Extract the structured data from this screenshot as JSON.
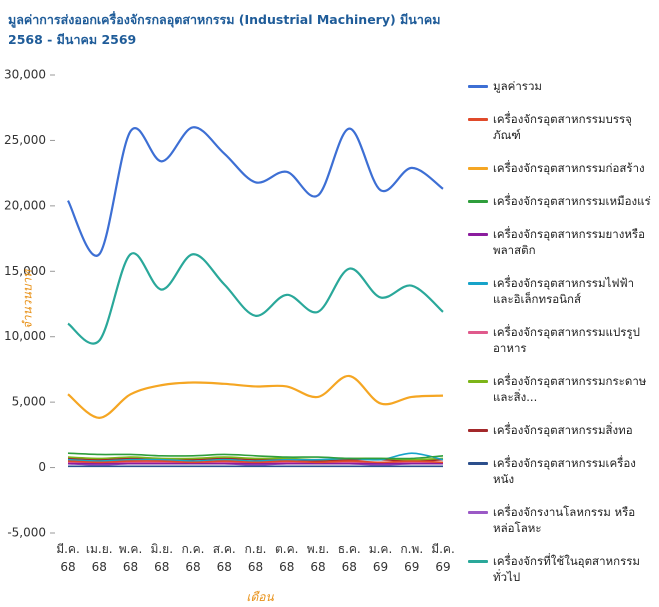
{
  "chart_data": {
    "type": "line",
    "title": "มูลค่าการส่งออกเครื่องจักรกลอุตสาหกรรม (Industrial Machinery) มีนาคม 2568 - มีนาคม 2569",
    "x_label": "เดือน",
    "y_label": "จำนวนบาท",
    "categories": [
      "มี.ค.\n68",
      "เม.ย.\n68",
      "พ.ค.\n68",
      "มิ.ย.\n68",
      "ก.ค.\n68",
      "ส.ค.\n68",
      "ก.ย.\n68",
      "ต.ค.\n68",
      "พ.ย.\n68",
      "ธ.ค.\n68",
      "ม.ค.\n69",
      "ก.พ.\n69",
      "มี.ค.\n69"
    ],
    "ylim": [
      -5000,
      30000
    ],
    "yticks": [
      {
        "value": -5000,
        "label": "-5,000"
      },
      0,
      {
        "value": 5000,
        "label": "5,000"
      },
      {
        "value": 10000,
        "label": "10,000"
      },
      {
        "value": 15000,
        "label": "15,000"
      },
      {
        "value": 20000,
        "label": "20,000"
      },
      {
        "value": 25000,
        "label": "25,000"
      },
      {
        "value": 30000,
        "label": "30,000"
      }
    ],
    "series": [
      {
        "name": "มูลค่ารวม",
        "color": "#3d6fd4",
        "values": [
          20400,
          16300,
          25700,
          23400,
          26000,
          24000,
          21800,
          22600,
          20800,
          25900,
          21200,
          22900,
          21300
        ]
      },
      {
        "name": "เครื่องจักรอุตสาหกรรมบรรจุภัณฑ์",
        "color": "#e04a2a",
        "values": [
          500,
          400,
          500,
          500,
          400,
          500,
          400,
          500,
          400,
          500,
          400,
          500,
          400
        ]
      },
      {
        "name": "เครื่องจักรอุตสาหกรรมก่อสร้าง",
        "color": "#f5a623",
        "values": [
          5600,
          3800,
          5600,
          6300,
          6500,
          6400,
          6200,
          6200,
          5400,
          7000,
          4900,
          5400,
          5500
        ]
      },
      {
        "name": "เครื่องจักรอุตสาหกรรมเหมืองแร่",
        "color": "#2f9e3c",
        "values": [
          1100,
          1000,
          1000,
          900,
          900,
          1000,
          900,
          800,
          800,
          700,
          700,
          700,
          900
        ]
      },
      {
        "name": "เครื่องจักรอุตสาหกรรมยางหรือพลาสติก",
        "color": "#8b1d9e",
        "values": [
          300,
          300,
          300,
          300,
          300,
          300,
          300,
          300,
          300,
          300,
          300,
          300,
          300
        ]
      },
      {
        "name": "เครื่องจักรอุตสาหกรรมไฟฟ้าและอิเล็กทรอนิกส์",
        "color": "#17a3c9",
        "values": [
          600,
          500,
          600,
          600,
          500,
          600,
          500,
          600,
          600,
          700,
          600,
          1100,
          600
        ]
      },
      {
        "name": "เครื่องจักรอุตสาหกรรมแปรรูปอาหาร",
        "color": "#e05a8c",
        "values": [
          400,
          300,
          400,
          400,
          400,
          400,
          300,
          400,
          400,
          400,
          300,
          400,
          400
        ]
      },
      {
        "name": "เครื่องจักรอุตสาหกรรมกระดาษและสิ่ง...",
        "color": "#7cb518",
        "values": [
          800,
          700,
          800,
          700,
          700,
          800,
          700,
          700,
          600,
          700,
          700,
          600,
          700
        ]
      },
      {
        "name": "เครื่องจักรอุตสาหกรรมสิ่งทอ",
        "color": "#a3282a",
        "values": [
          700,
          600,
          700,
          600,
          600,
          700,
          600,
          600,
          500,
          600,
          600,
          500,
          600
        ]
      },
      {
        "name": "เครื่องจักรอุตสาหกรรมเครื่องหนัง",
        "color": "#2c4f8c",
        "values": [
          100,
          100,
          100,
          100,
          100,
          100,
          100,
          100,
          100,
          100,
          100,
          100,
          100
        ]
      },
      {
        "name": "เครื่องจักรงานโลหกรรม หรือหล่อโลหะ",
        "color": "#9b59c6",
        "values": [
          300,
          200,
          300,
          300,
          300,
          300,
          200,
          300,
          300,
          300,
          200,
          300,
          300
        ]
      },
      {
        "name": "เครื่องจักรที่ใช้ในอุตสาหกรรมทั่วไป",
        "color": "#2aa89a",
        "values": [
          11000,
          9700,
          16300,
          13600,
          16300,
          14000,
          11600,
          13200,
          11900,
          15200,
          13000,
          13900,
          11900
        ]
      }
    ]
  }
}
